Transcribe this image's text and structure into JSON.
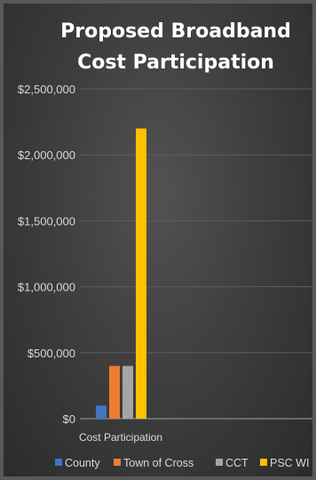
{
  "chart_data": {
    "type": "bar",
    "title": "Proposed Broadband Cost Participation",
    "title_lines": [
      "Proposed Broadband",
      "Cost Participation"
    ],
    "categories": [
      "Cost Participation"
    ],
    "series": [
      {
        "name": "County",
        "values": [
          100000
        ],
        "color": "#4472c4"
      },
      {
        "name": "Town of Cross",
        "values": [
          400000
        ],
        "color": "#ed7d31"
      },
      {
        "name": "CCT",
        "values": [
          400000
        ],
        "color": "#a5a5a5"
      },
      {
        "name": "PSC WI",
        "values": [
          2200000
        ],
        "color": "#ffc000"
      }
    ],
    "ylim": [
      0,
      2500000
    ],
    "y_ticks": [
      0,
      500000,
      1000000,
      1500000,
      2000000,
      2500000
    ],
    "y_tick_labels": [
      "$0",
      "$500,000",
      "$1,000,000",
      "$1,500,000",
      "$2,000,000",
      "$2,500,000"
    ],
    "xlabel": "",
    "ylabel": "",
    "grid": true,
    "legend_position": "bottom"
  }
}
